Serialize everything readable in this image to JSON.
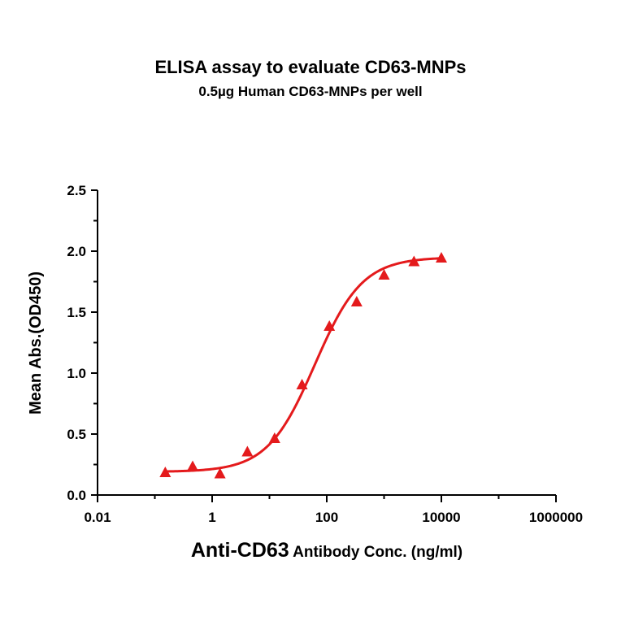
{
  "chart_data": {
    "type": "scatter",
    "title": "ELISA assay to evaluate CD63-MNPs",
    "subtitle": "0.5µg Human CD63-MNPs per well",
    "xlabel_main": "Anti-CD63",
    "xlabel_rest": "Antibody Conc. (ng/ml)",
    "ylabel": "Mean Abs.(OD450)",
    "x_scale": "log",
    "xlim": [
      0.01,
      1000000
    ],
    "ylim": [
      0,
      2.5
    ],
    "x_ticks": [
      {
        "value": 0.01,
        "label": "0.01"
      },
      {
        "value": 1,
        "label": "1"
      },
      {
        "value": 100,
        "label": "100"
      },
      {
        "value": 10000,
        "label": "10000"
      },
      {
        "value": 1000000,
        "label": "1000000"
      }
    ],
    "y_ticks": [
      {
        "value": 0.0,
        "label": "0.0"
      },
      {
        "value": 0.5,
        "label": "0.5"
      },
      {
        "value": 1.0,
        "label": "1.0"
      },
      {
        "value": 1.5,
        "label": "1.5"
      },
      {
        "value": 2.0,
        "label": "2.0"
      },
      {
        "value": 2.5,
        "label": "2.5"
      }
    ],
    "grid": false,
    "color": "#e41a1c",
    "marker": "triangle",
    "series": [
      {
        "points": [
          {
            "x": 0.152,
            "y": 0.18
          },
          {
            "x": 0.457,
            "y": 0.23
          },
          {
            "x": 1.37,
            "y": 0.17
          },
          {
            "x": 4.12,
            "y": 0.35
          },
          {
            "x": 12.3,
            "y": 0.46
          },
          {
            "x": 37.0,
            "y": 0.9
          },
          {
            "x": 111,
            "y": 1.38
          },
          {
            "x": 333,
            "y": 1.58
          },
          {
            "x": 1000,
            "y": 1.8
          },
          {
            "x": 3330,
            "y": 1.91
          },
          {
            "x": 10000,
            "y": 1.94
          }
        ],
        "fit": {
          "model": "4PL",
          "bottom": 0.19,
          "top": 1.95,
          "ec50": 62,
          "hill": 1.05,
          "x_range": [
            0.152,
            10000
          ]
        }
      }
    ]
  }
}
